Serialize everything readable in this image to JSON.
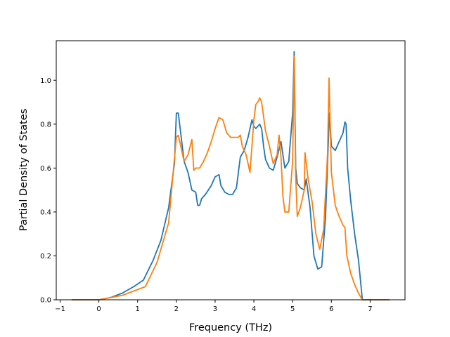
{
  "chart_data": {
    "type": "line",
    "xlabel": "Frequency (THz)",
    "ylabel": "Partial Density of States",
    "xlim": [
      -1.1,
      7.9
    ],
    "ylim": [
      0.0,
      1.18
    ],
    "xticks": [
      -1,
      0,
      1,
      2,
      3,
      4,
      5,
      6,
      7
    ],
    "yticks": [
      0.0,
      0.2,
      0.4,
      0.6,
      0.8,
      1.0
    ],
    "xtick_labels": [
      "−1",
      "0",
      "1",
      "2",
      "3",
      "4",
      "5",
      "6",
      "7"
    ],
    "ytick_labels": [
      "0.0",
      "0.2",
      "0.4",
      "0.6",
      "0.8",
      "1.0"
    ],
    "grid": false,
    "series": [
      {
        "color": "#1f77b4",
        "x": [
          -0.7,
          0.0,
          0.3,
          0.6,
          0.9,
          1.15,
          1.4,
          1.6,
          1.8,
          1.95,
          2.0,
          2.05,
          2.2,
          2.3,
          2.4,
          2.5,
          2.55,
          2.6,
          2.65,
          2.75,
          2.9,
          3.0,
          3.1,
          3.15,
          3.25,
          3.35,
          3.45,
          3.55,
          3.65,
          3.75,
          3.85,
          3.95,
          4.0,
          4.05,
          4.1,
          4.15,
          4.2,
          4.25,
          4.3,
          4.4,
          4.5,
          4.6,
          4.7,
          4.8,
          4.9,
          5.0,
          5.04,
          5.08,
          5.12,
          5.2,
          5.3,
          5.35,
          5.45,
          5.55,
          5.65,
          5.75,
          5.85,
          5.95,
          6.0,
          6.1,
          6.2,
          6.3,
          6.35,
          6.38,
          6.42,
          6.5,
          6.6,
          6.7,
          6.8,
          6.85,
          7.5
        ],
        "y": [
          0.0,
          0.0,
          0.01,
          0.03,
          0.06,
          0.09,
          0.18,
          0.27,
          0.42,
          0.62,
          0.85,
          0.85,
          0.63,
          0.58,
          0.5,
          0.49,
          0.43,
          0.43,
          0.46,
          0.48,
          0.52,
          0.56,
          0.57,
          0.52,
          0.49,
          0.48,
          0.48,
          0.51,
          0.65,
          0.68,
          0.74,
          0.82,
          0.79,
          0.78,
          0.79,
          0.8,
          0.78,
          0.7,
          0.64,
          0.6,
          0.59,
          0.65,
          0.72,
          0.6,
          0.63,
          0.85,
          1.13,
          0.6,
          0.53,
          0.51,
          0.5,
          0.55,
          0.42,
          0.2,
          0.14,
          0.15,
          0.38,
          0.85,
          0.7,
          0.68,
          0.72,
          0.76,
          0.81,
          0.8,
          0.6,
          0.45,
          0.3,
          0.18,
          0.0,
          0.0,
          0.0
        ]
      },
      {
        "color": "#ff7f0e",
        "x": [
          -0.7,
          0.0,
          0.3,
          0.6,
          0.9,
          1.2,
          1.5,
          1.8,
          2.0,
          2.05,
          2.2,
          2.3,
          2.4,
          2.45,
          2.5,
          2.6,
          2.7,
          2.8,
          2.9,
          3.0,
          3.1,
          3.2,
          3.3,
          3.4,
          3.5,
          3.6,
          3.65,
          3.7,
          3.8,
          3.9,
          4.0,
          4.05,
          4.1,
          4.15,
          4.2,
          4.3,
          4.4,
          4.5,
          4.6,
          4.65,
          4.7,
          4.75,
          4.8,
          4.9,
          5.0,
          5.04,
          5.08,
          5.12,
          5.2,
          5.3,
          5.32,
          5.4,
          5.5,
          5.6,
          5.7,
          5.8,
          5.9,
          5.94,
          6.0,
          6.1,
          6.2,
          6.3,
          6.35,
          6.4,
          6.5,
          6.6,
          6.7,
          6.8,
          7.5
        ],
        "y": [
          0.0,
          0.0,
          0.01,
          0.02,
          0.04,
          0.06,
          0.17,
          0.35,
          0.74,
          0.75,
          0.63,
          0.66,
          0.73,
          0.59,
          0.6,
          0.6,
          0.63,
          0.67,
          0.72,
          0.78,
          0.83,
          0.82,
          0.76,
          0.74,
          0.74,
          0.74,
          0.75,
          0.7,
          0.66,
          0.58,
          0.82,
          0.89,
          0.9,
          0.92,
          0.9,
          0.77,
          0.7,
          0.62,
          0.66,
          0.75,
          0.65,
          0.47,
          0.4,
          0.4,
          0.63,
          1.11,
          0.56,
          0.38,
          0.42,
          0.5,
          0.67,
          0.55,
          0.45,
          0.3,
          0.23,
          0.32,
          0.66,
          1.01,
          0.58,
          0.43,
          0.38,
          0.34,
          0.33,
          0.2,
          0.12,
          0.07,
          0.03,
          0.0,
          0.0
        ]
      }
    ]
  }
}
